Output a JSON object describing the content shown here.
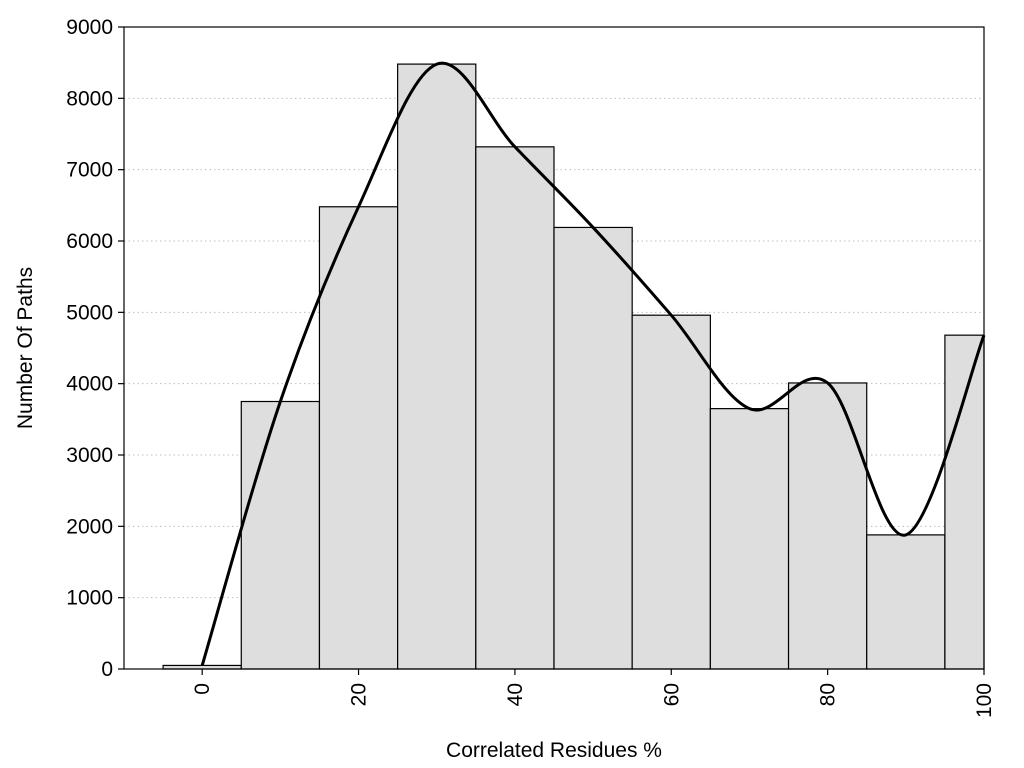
{
  "chart_data": {
    "type": "bar",
    "subtype": "histogram-with-smooth-curve",
    "title": "",
    "xlabel": "Correlated Residues %",
    "ylabel": "Number Of Paths",
    "x": [
      0,
      10,
      20,
      30,
      40,
      50,
      60,
      70,
      80,
      90,
      100
    ],
    "values": [
      50,
      3750,
      6480,
      8480,
      7320,
      6190,
      4960,
      3650,
      4010,
      1880,
      4680
    ],
    "bin_width": 10,
    "curve": {
      "x": [
        0,
        10,
        20,
        30,
        40,
        50,
        60,
        70,
        80,
        90,
        100
      ],
      "y": [
        50,
        3750,
        6480,
        8480,
        7320,
        6190,
        4960,
        3650,
        4010,
        1880,
        4680
      ]
    },
    "xlim": [
      -10,
      100
    ],
    "ylim": [
      0,
      9000
    ],
    "xticks": [
      "0",
      "20",
      "40",
      "60",
      "80",
      "100"
    ],
    "yticks": [
      "0",
      "1000",
      "2000",
      "3000",
      "4000",
      "5000",
      "6000",
      "7000",
      "8000",
      "9000"
    ],
    "xtick_values": [
      0,
      20,
      40,
      60,
      80,
      100
    ],
    "ytick_values": [
      0,
      1000,
      2000,
      3000,
      4000,
      5000,
      6000,
      7000,
      8000,
      9000
    ],
    "grid": "horizontal-dotted",
    "legend": "none",
    "colors": {
      "bar_fill": "#dedede",
      "bar_stroke": "#000000",
      "curve": "#000000",
      "grid": "#bfbfbf"
    }
  }
}
